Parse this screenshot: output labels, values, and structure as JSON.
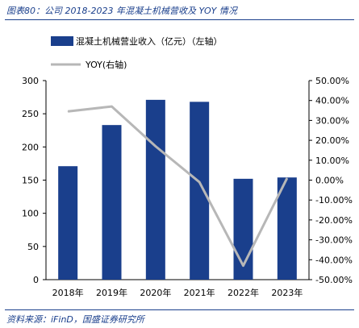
{
  "figure_title": "图表80：公司 2018-2023 年混凝土机械营收及 YOY 情况",
  "source": "资料来源：iFinD，国盛证券研究所",
  "colors": {
    "bar": "#1a3f8c",
    "line": "#b7b7b7",
    "accent": "#1a3f8c"
  },
  "chart_data": {
    "type": "bar",
    "categories": [
      "2018年",
      "2019年",
      "2020年",
      "2021年",
      "2022年",
      "2023年"
    ],
    "series": [
      {
        "name": "混凝土机械营业收入（亿元）（左轴）",
        "type": "bar",
        "axis": "left",
        "values": [
          171,
          233,
          271,
          268,
          152,
          154
        ]
      },
      {
        "name": "YOY(右轴)",
        "type": "line",
        "axis": "right",
        "values": [
          0.345,
          0.37,
          0.17,
          -0.01,
          -0.43,
          0.01
        ]
      }
    ],
    "ylim_left": [
      0,
      300
    ],
    "yticks_left": [
      "0",
      "50",
      "100",
      "150",
      "200",
      "250",
      "300"
    ],
    "ylim_right": [
      -0.5,
      0.5
    ],
    "yticks_right": [
      "-50.00%",
      "-40.00%",
      "-30.00%",
      "-20.00%",
      "-10.00%",
      "0.00%",
      "10.00%",
      "20.00%",
      "30.00%",
      "40.00%",
      "50.00%"
    ],
    "legend_position": "top-left",
    "grid": false
  }
}
